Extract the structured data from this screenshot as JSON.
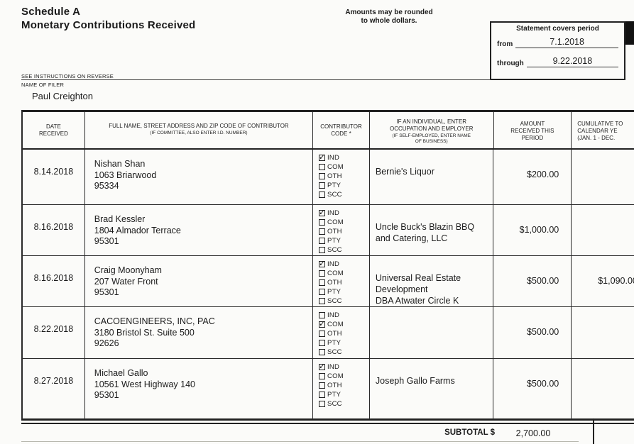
{
  "form": {
    "title_line1": "Schedule A",
    "title_line2": "Monetary Contributions Received",
    "rounding_note": "Amounts may be rounded\nto whole dollars.",
    "see_instructions": "SEE INSTRUCTIONS ON REVERSE",
    "name_of_filer_label": "NAME OF FILER",
    "filer_name": "Paul Creighton",
    "statement_period": {
      "title": "Statement covers period",
      "from_label": "from",
      "from_value": "7.1.2018",
      "through_label": "through",
      "through_value": "9.22.2018"
    }
  },
  "table": {
    "headers": {
      "date": "DATE\nRECEIVED",
      "contributor": "FULL NAME, STREET ADDRESS AND ZIP CODE OF CONTRIBUTOR",
      "contributor_sub": "(IF COMMITTEE, ALSO ENTER I.D. NUMBER)",
      "code": "CONTRIBUTOR\nCODE *",
      "occupation": "IF AN INDIVIDUAL, ENTER\nOCCUPATION AND EMPLOYER",
      "occupation_sub": "(IF SELF-EMPLOYED, ENTER NAME\nOF BUSINESS)",
      "amount": "AMOUNT\nRECEIVED THIS\nPERIOD",
      "cumulative": "CUMULATIVE TO\nCALENDAR YE\n(JAN. 1 - DEC."
    },
    "codes": [
      "IND",
      "COM",
      "OTH",
      "PTY",
      "SCC"
    ],
    "rows": [
      {
        "date": "8.14.2018",
        "contributor": "Nishan Shan\n1063 Briarwood\n95334",
        "code": "IND",
        "occupation": "Bernie's Liquor",
        "amount": "$200.00",
        "cumulative": ""
      },
      {
        "date": "8.16.2018",
        "contributor": "Brad Kessler\n1804 Almador Terrace\n95301",
        "code": "IND",
        "occupation": "Uncle Buck's Blazin BBQ\nand Catering, LLC",
        "amount": "$1,000.00",
        "cumulative": ""
      },
      {
        "date": "8.16.2018",
        "contributor": "Craig Moonyham\n207 Water Front\n95301",
        "code": "IND",
        "occupation": "Universal Real Estate\nDevelopment\nDBA Atwater Circle K",
        "amount": "$500.00",
        "cumulative": "$1,090.00"
      },
      {
        "date": "8.22.2018",
        "contributor": "CACOENGINEERS, INC, PAC\n3180 Bristol St. Suite 500\n92626",
        "code": "COM",
        "occupation": "",
        "amount": "$500.00",
        "cumulative": ""
      },
      {
        "date": "8.27.2018",
        "contributor": "Michael Gallo\n10561 West Highway 140\n95301",
        "code": "IND",
        "occupation": "Joseph Gallo Farms",
        "amount": "$500.00",
        "cumulative": ""
      }
    ],
    "subtotal_label": "SUBTOTAL $",
    "subtotal_value": "2,700.00"
  }
}
